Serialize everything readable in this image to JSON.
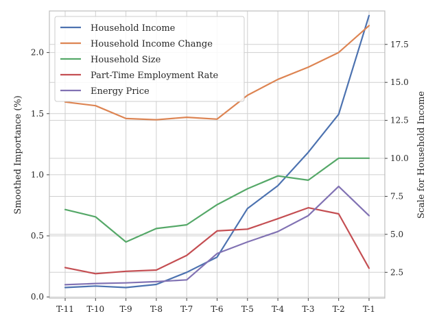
{
  "chart_data": {
    "type": "line",
    "categories": [
      "T-11",
      "T-10",
      "T-9",
      "T-8",
      "T-7",
      "T-6",
      "T-5",
      "T-4",
      "T-3",
      "T-2",
      "T-1"
    ],
    "ylabel_left": "Smoothed Importance (%)",
    "ylabel_right": "Scale for Household Income",
    "ylim_left": [
      -0.01,
      2.34
    ],
    "ylim_right": [
      0.8,
      19.7
    ],
    "yticks_left": [
      0.0,
      0.5,
      1.0,
      1.5,
      2.0
    ],
    "yticks_right": [
      2.5,
      5.0,
      7.5,
      10.0,
      12.5,
      15.0,
      17.5
    ],
    "ytick_labels_left": [
      "0.0",
      "0.5",
      "1.0",
      "1.5",
      "2.0"
    ],
    "ytick_labels_right": [
      "2.5",
      "5.0",
      "7.5",
      "10.0",
      "12.5",
      "15.0",
      "17.5"
    ],
    "grid": true,
    "legend_position": "top-left",
    "series": [
      {
        "name": "Household Income",
        "axis": "right",
        "color": "#4c72b0",
        "values": [
          1.5,
          1.6,
          1.5,
          1.7,
          2.5,
          3.5,
          6.7,
          8.2,
          10.4,
          12.9,
          19.4
        ]
      },
      {
        "name": "Household Income Change",
        "axis": "left",
        "color": "#dd8452",
        "values": [
          1.595,
          1.565,
          1.46,
          1.45,
          1.47,
          1.455,
          1.65,
          1.78,
          1.88,
          2.0,
          2.22
        ]
      },
      {
        "name": "Household Size",
        "axis": "left",
        "color": "#55a868",
        "values": [
          0.715,
          0.655,
          0.45,
          0.56,
          0.59,
          0.755,
          0.885,
          0.99,
          0.955,
          1.135,
          1.135
        ]
      },
      {
        "name": "Part-Time Employment Rate",
        "axis": "left",
        "color": "#c44e52",
        "values": [
          0.24,
          0.19,
          0.21,
          0.22,
          0.34,
          0.54,
          0.555,
          0.64,
          0.73,
          0.68,
          0.235
        ]
      },
      {
        "name": "Energy Price",
        "axis": "left",
        "color": "#8172b3",
        "values": [
          0.1,
          0.11,
          0.115,
          0.125,
          0.14,
          0.355,
          0.45,
          0.535,
          0.665,
          0.905,
          0.665
        ]
      }
    ]
  }
}
